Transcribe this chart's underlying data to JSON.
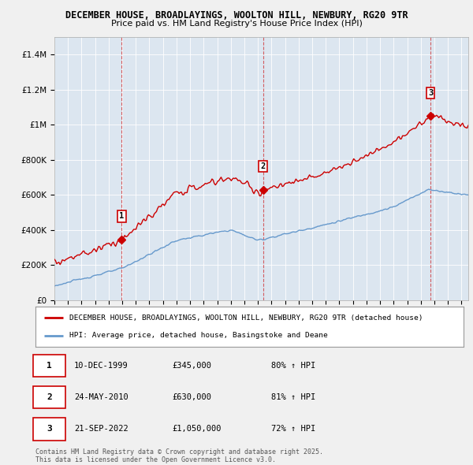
{
  "title_line1": "DECEMBER HOUSE, BROADLAYINGS, WOOLTON HILL, NEWBURY, RG20 9TR",
  "title_line2": "Price paid vs. HM Land Registry's House Price Index (HPI)",
  "background_color": "#f0f0f0",
  "plot_bg_color": "#dce6f0",
  "ylim": [
    0,
    1500000
  ],
  "yticks": [
    0,
    200000,
    400000,
    600000,
    800000,
    1000000,
    1200000,
    1400000
  ],
  "ytick_labels": [
    "£0",
    "£200K",
    "£400K",
    "£600K",
    "£800K",
    "£1M",
    "£1.2M",
    "£1.4M"
  ],
  "sale_t": [
    1999.958,
    2010.375,
    2022.708
  ],
  "sale_prices": [
    345000,
    630000,
    1050000
  ],
  "sale_labels": [
    "1",
    "2",
    "3"
  ],
  "legend_house": "DECEMBER HOUSE, BROADLAYINGS, WOOLTON HILL, NEWBURY, RG20 9TR (detached house)",
  "legend_hpi": "HPI: Average price, detached house, Basingstoke and Deane",
  "footer": "Contains HM Land Registry data © Crown copyright and database right 2025.\nThis data is licensed under the Open Government Licence v3.0.",
  "table_rows": [
    [
      "1",
      "10-DEC-1999",
      "£345,000",
      "80% ↑ HPI"
    ],
    [
      "2",
      "24-MAY-2010",
      "£630,000",
      "81% ↑ HPI"
    ],
    [
      "3",
      "21-SEP-2022",
      "£1,050,000",
      "72% ↑ HPI"
    ]
  ],
  "house_color": "#cc0000",
  "hpi_color": "#6699cc",
  "vline_color": "#cc0000",
  "grid_color": "#ffffff",
  "xmin": 1995.0,
  "xmax": 2025.5
}
